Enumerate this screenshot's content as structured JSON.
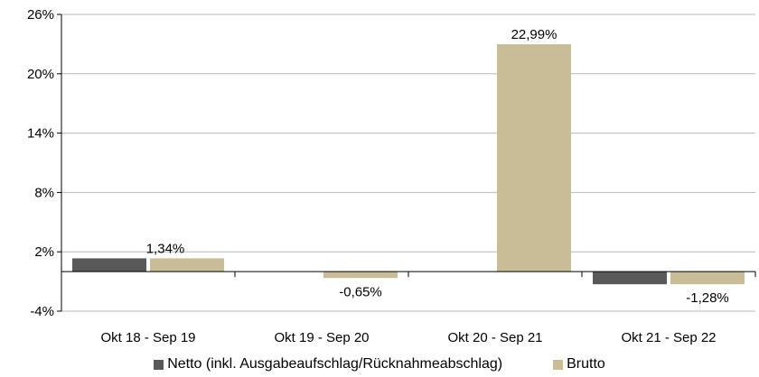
{
  "chart_data": {
    "type": "bar",
    "categories": [
      "Okt 18 - Sep 19",
      "Okt 19 - Sep 20",
      "Okt 20 - Sep 21",
      "Okt 21 - Sep 22"
    ],
    "series": [
      {
        "name": "Netto (inkl. Ausgabeaufschlag/Rücknahmeabschlag)",
        "values": [
          1.34,
          null,
          null,
          -1.28
        ],
        "color": "#595959"
      },
      {
        "name": "Brutto",
        "values": [
          1.34,
          -0.65,
          22.99,
          -1.28
        ],
        "color": "#c8bd97"
      }
    ],
    "data_labels": [
      "1,34%",
      "-0,65%",
      "22,99%",
      "-1,28%"
    ],
    "y_ticks": [
      -4,
      2,
      8,
      14,
      20,
      26
    ],
    "y_tick_labels": [
      "-4%",
      "2%",
      "8%",
      "14%",
      "20%",
      "26%"
    ],
    "ylim": [
      -4,
      26
    ],
    "title": "",
    "xlabel": "",
    "ylabel": "",
    "grid": true,
    "legend_position": "bottom"
  }
}
